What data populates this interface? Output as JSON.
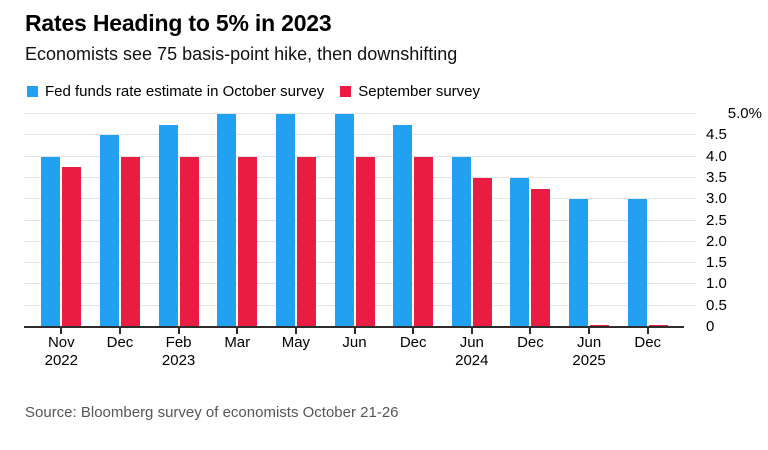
{
  "header": {
    "title": "Rates Heading to 5% in 2023",
    "subtitle": "Economists see 75 basis-point hike, then downshifting"
  },
  "legend": [
    {
      "label": "Fed funds rate estimate in October survey",
      "color": "#22A1F2"
    },
    {
      "label": "September survey",
      "color": "#EA1C42"
    }
  ],
  "chart_data": {
    "type": "bar",
    "title": "Rates Heading to 5% in 2023",
    "subtitle": "Economists see 75 basis-point hike, then downshifting",
    "categories": [
      {
        "month": "Nov",
        "year": "2022"
      },
      {
        "month": "Dec",
        "year": ""
      },
      {
        "month": "Feb",
        "year": "2023"
      },
      {
        "month": "Mar",
        "year": ""
      },
      {
        "month": "May",
        "year": ""
      },
      {
        "month": "Jun",
        "year": ""
      },
      {
        "month": "Dec",
        "year": ""
      },
      {
        "month": "Jun",
        "year": "2024"
      },
      {
        "month": "Dec",
        "year": ""
      },
      {
        "month": "Jun",
        "year": "2025"
      },
      {
        "month": "Dec",
        "year": ""
      }
    ],
    "series": [
      {
        "name": "Fed funds rate estimate in October survey",
        "color": "#22A1F2",
        "values": [
          4.0,
          4.5,
          4.75,
          5.0,
          5.0,
          5.0,
          4.75,
          4.0,
          3.5,
          3.0,
          3.0
        ]
      },
      {
        "name": "September survey",
        "color": "#EA1C42",
        "values": [
          3.75,
          4.0,
          4.0,
          4.0,
          4.0,
          4.0,
          4.0,
          3.5,
          3.25,
          0.05,
          0.05
        ]
      }
    ],
    "ylim": [
      0,
      5
    ],
    "y_ticks_top_to_bottom": [
      "5.0%",
      "4.5",
      "4.0",
      "3.5",
      "3.0",
      "2.5",
      "2.0",
      "1.5",
      "1.0",
      "0.5",
      "0"
    ],
    "grid": true,
    "legend_position": "top"
  },
  "source": "Source: Bloomberg survey of economists October 21-26"
}
